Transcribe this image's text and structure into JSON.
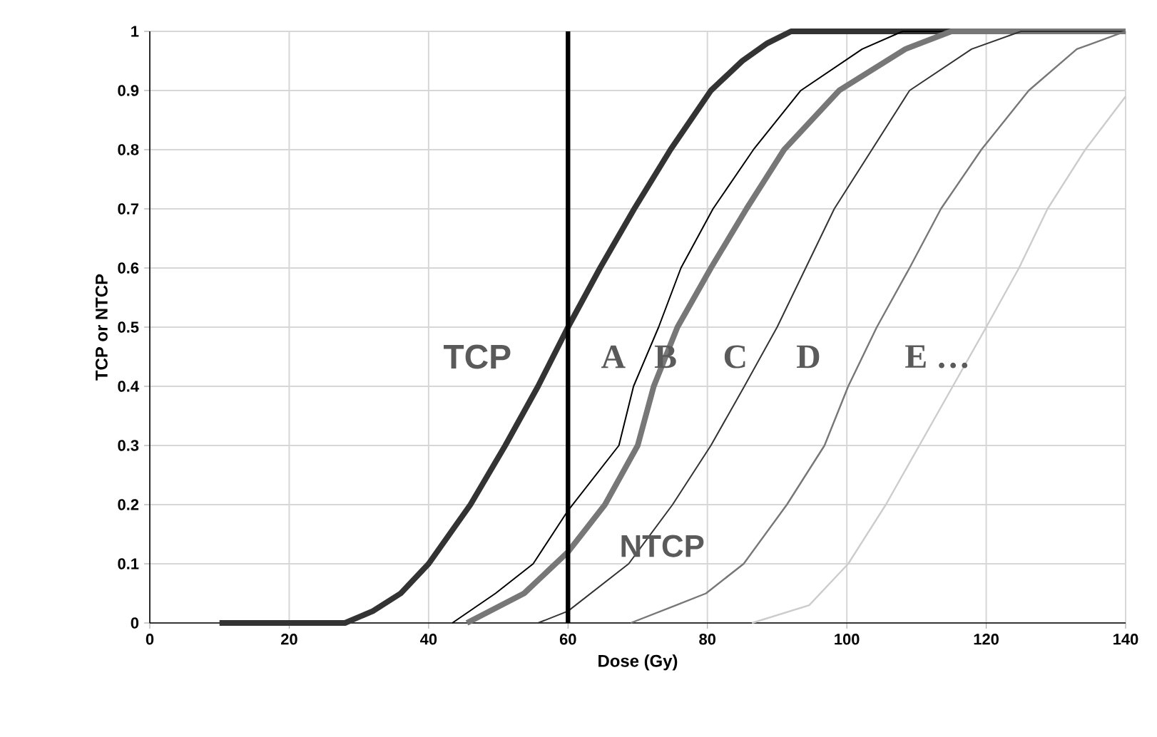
{
  "chart_data": {
    "type": "line",
    "xlabel": "Dose (Gy)",
    "ylabel": "TCP or NTCP",
    "series": [
      {
        "name": "TCP",
        "color": "#333333",
        "x": [
          10,
          28,
          32,
          36,
          40,
          46,
          51,
          55.7,
          60,
          64.6,
          69.5,
          74.7,
          80.5,
          85,
          88.6,
          92,
          140
        ],
        "values": [
          0,
          0,
          0.02,
          0.05,
          0.1,
          0.2,
          0.3,
          0.4,
          0.5,
          0.6,
          0.7,
          0.8,
          0.9,
          0.95,
          0.98,
          1,
          1
        ]
      },
      {
        "name": "A",
        "color": "#000000",
        "x": [
          43.4,
          49.6,
          55,
          60,
          67.3,
          69.4,
          73,
          76.2,
          80.8,
          86.6,
          93.4,
          102.2,
          108,
          140
        ],
        "values": [
          0,
          0.05,
          0.1,
          0.19,
          0.3,
          0.4,
          0.5,
          0.6,
          0.7,
          0.8,
          0.9,
          0.97,
          1,
          1
        ]
      },
      {
        "name": "B",
        "color": "#777777",
        "x": [
          45.5,
          53.7,
          60,
          65.3,
          70,
          72.3,
          75.7,
          80.5,
          85.6,
          91,
          98.9,
          108.4,
          115,
          140
        ],
        "values": [
          0,
          0.05,
          0.12,
          0.2,
          0.3,
          0.4,
          0.5,
          0.6,
          0.7,
          0.8,
          0.9,
          0.97,
          1,
          1
        ]
      },
      {
        "name": "C",
        "color": "#333333",
        "x": [
          55.7,
          60,
          68.7,
          75,
          80.5,
          85.3,
          90,
          94.1,
          98.2,
          103.6,
          109,
          117.9,
          125,
          140
        ],
        "values": [
          0,
          0.02,
          0.1,
          0.2,
          0.3,
          0.4,
          0.5,
          0.6,
          0.7,
          0.8,
          0.9,
          0.97,
          1,
          1
        ]
      },
      {
        "name": "D",
        "color": "#777777",
        "x": [
          69,
          75.5,
          79.8,
          85.2,
          91.4,
          96.8,
          100.2,
          104.3,
          109,
          113.5,
          119.3,
          126.1,
          133,
          140
        ],
        "values": [
          0,
          0.03,
          0.05,
          0.1,
          0.2,
          0.3,
          0.4,
          0.5,
          0.6,
          0.7,
          0.8,
          0.9,
          0.97,
          1
        ]
      },
      {
        "name": "E …",
        "color": "#cccccc",
        "x": [
          86.4,
          94.6,
          100.2,
          105.6,
          110.4,
          115.2,
          120,
          124.7,
          128.8,
          134.2,
          140
        ],
        "values": [
          0,
          0.03,
          0.1,
          0.2,
          0.3,
          0.4,
          0.5,
          0.6,
          0.7,
          0.8,
          0.89
        ]
      }
    ],
    "annotations": [
      "NTCP"
    ],
    "ref_lines": [
      {
        "axis": "x",
        "value": 60,
        "color": "#000000"
      }
    ],
    "xlim": [
      0,
      140
    ],
    "ylim": [
      0,
      1
    ],
    "xticks": [
      0,
      20,
      40,
      60,
      80,
      100,
      120,
      140
    ],
    "yticks": [
      0,
      0.1,
      0.2,
      0.3,
      0.4,
      0.5,
      0.6,
      0.7,
      0.8,
      0.9,
      1
    ],
    "grid": true,
    "line_style": "solid"
  }
}
